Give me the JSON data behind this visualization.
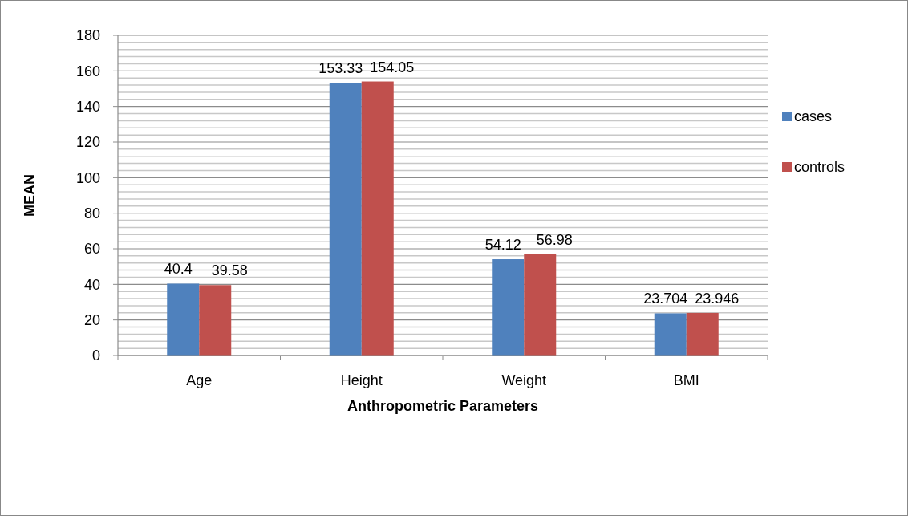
{
  "chart_data": {
    "type": "bar",
    "xlabel": "Anthropometric Parameters",
    "ylabel": "MEAN",
    "categories": [
      "Age",
      "Height",
      "Weight",
      "BMI"
    ],
    "series": [
      {
        "name": "cases",
        "color": "#4f81bd",
        "values": [
          40.4,
          153.33,
          54.12,
          23.704
        ]
      },
      {
        "name": "controls",
        "color": "#c0504d",
        "values": [
          39.58,
          154.05,
          56.98,
          23.946
        ]
      }
    ],
    "ylim": [
      0,
      180
    ],
    "yticks": [
      0,
      {
        "value": 4,
        "label": null
      },
      {
        "value": 8,
        "label": null
      },
      {
        "value": 12,
        "label": null
      },
      {
        "value": 16,
        "label": null
      },
      20,
      {
        "value": 24,
        "label": null
      },
      {
        "value": 28,
        "label": null
      },
      {
        "value": 32,
        "label": null
      },
      {
        "value": 36,
        "label": null
      },
      40,
      {
        "value": 44,
        "label": null
      },
      {
        "value": 48,
        "label": null
      },
      {
        "value": 52,
        "label": null
      },
      {
        "value": 56,
        "label": null
      },
      60,
      {
        "value": 64,
        "label": null
      },
      {
        "value": 68,
        "label": null
      },
      {
        "value": 72,
        "label": null
      },
      {
        "value": 76,
        "label": null
      },
      80,
      {
        "value": 84,
        "label": null
      },
      {
        "value": 88,
        "label": null
      },
      {
        "value": 92,
        "label": null
      },
      {
        "value": 96,
        "label": null
      },
      100,
      {
        "value": 104,
        "label": null
      },
      {
        "value": 108,
        "label": null
      },
      {
        "value": 112,
        "label": null
      },
      {
        "value": 116,
        "label": null
      },
      120,
      {
        "value": 124,
        "label": null
      },
      {
        "value": 128,
        "label": null
      },
      {
        "value": 132,
        "label": null
      },
      {
        "value": 136,
        "label": null
      },
      140,
      {
        "value": 144,
        "label": null
      },
      {
        "value": 148,
        "label": null
      },
      {
        "value": 152,
        "label": null
      },
      {
        "value": 156,
        "label": null
      },
      160,
      {
        "value": 164,
        "label": null
      },
      {
        "value": 168,
        "label": null
      },
      {
        "value": 172,
        "label": null
      },
      {
        "value": 176,
        "label": null
      },
      180
    ],
    "grid": "y",
    "legend": "right",
    "data_labels": true
  }
}
